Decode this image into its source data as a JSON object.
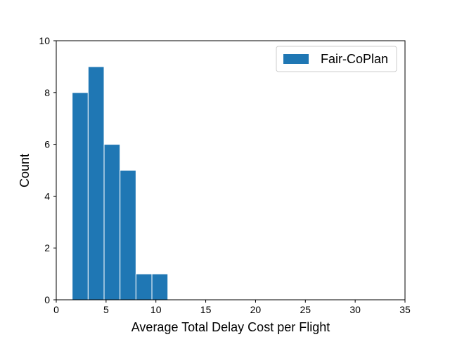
{
  "chart_data": {
    "type": "bar",
    "title": "",
    "xlabel": "Average Total Delay Cost per Flight",
    "ylabel": "Count",
    "xlim": [
      0,
      35
    ],
    "ylim": [
      0,
      10
    ],
    "xticks": [
      0,
      5,
      10,
      15,
      20,
      25,
      30,
      35
    ],
    "yticks": [
      0,
      2,
      4,
      6,
      8,
      10
    ],
    "grid": false,
    "legend_position": "top-right",
    "bar_color": "#1f77b4",
    "edge_color": "#ffffff",
    "series": [
      {
        "name": "Fair-CoPlan",
        "bins": [
          {
            "x0": 1.6,
            "x1": 3.2,
            "count": 8
          },
          {
            "x0": 3.2,
            "x1": 4.8,
            "count": 9
          },
          {
            "x0": 4.8,
            "x1": 6.4,
            "count": 6
          },
          {
            "x0": 6.4,
            "x1": 8.0,
            "count": 5
          },
          {
            "x0": 8.0,
            "x1": 9.6,
            "count": 1
          },
          {
            "x0": 9.6,
            "x1": 11.2,
            "count": 1
          }
        ]
      }
    ]
  }
}
